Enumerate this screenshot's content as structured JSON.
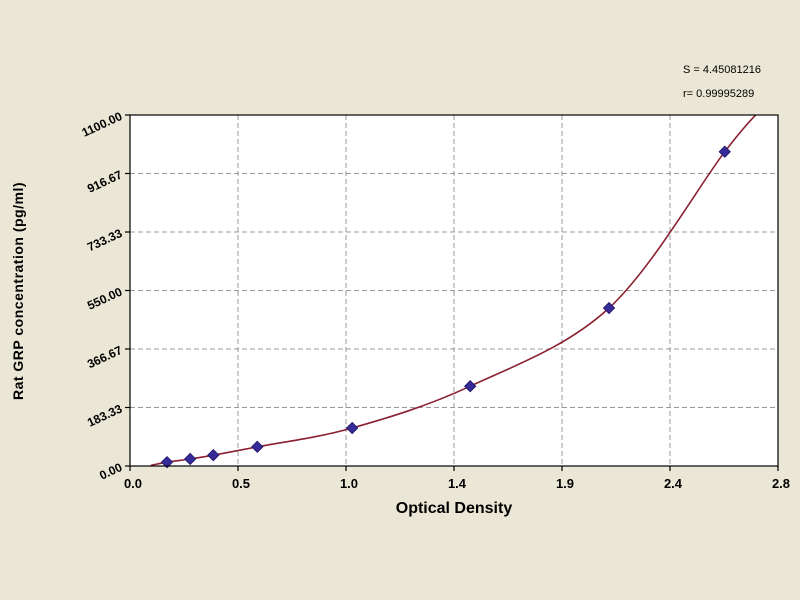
{
  "chart_data": {
    "type": "line",
    "title": "",
    "xlabel": "Optical Density",
    "ylabel": "Rat GRP concentration (pg/ml)",
    "stats_lines": [
      "S = 4.45081216",
      "r= 0.99995289"
    ],
    "x_tick_labels": [
      "0.0",
      "0.5",
      "1.0",
      "1.4",
      "1.9",
      "2.4",
      "2.8"
    ],
    "y_tick_labels": [
      "0.00",
      "183.33",
      "366.67",
      "550.00",
      "733.33",
      "916.67",
      "1100.00"
    ],
    "xlim": [
      0,
      2.8
    ],
    "ylim": [
      0,
      1100
    ],
    "grid": "dashed",
    "legend": "none",
    "series": [
      {
        "name": "standard-points",
        "type": "scatter",
        "points": [
          [
            0.16,
            12
          ],
          [
            0.26,
            22
          ],
          [
            0.36,
            34
          ],
          [
            0.55,
            60
          ],
          [
            0.96,
            119
          ],
          [
            1.47,
            250
          ],
          [
            2.07,
            495
          ],
          [
            2.57,
            985
          ]
        ]
      },
      {
        "name": "fitted-curve",
        "type": "line",
        "points": [
          [
            0.09,
            2
          ],
          [
            0.16,
            12
          ],
          [
            0.26,
            22
          ],
          [
            0.36,
            34
          ],
          [
            0.55,
            60
          ],
          [
            0.96,
            119
          ],
          [
            1.47,
            250
          ],
          [
            2.07,
            495
          ],
          [
            2.57,
            985
          ],
          [
            2.73,
            1120
          ]
        ]
      }
    ],
    "colors": {
      "curve": "#8b2030",
      "marker": "#362b99",
      "marker_edge": "#241c6e",
      "background": "#ebe7d6",
      "plot_background": "#ffffff",
      "grid": "#9a9a9a",
      "axis": "#000000"
    }
  }
}
